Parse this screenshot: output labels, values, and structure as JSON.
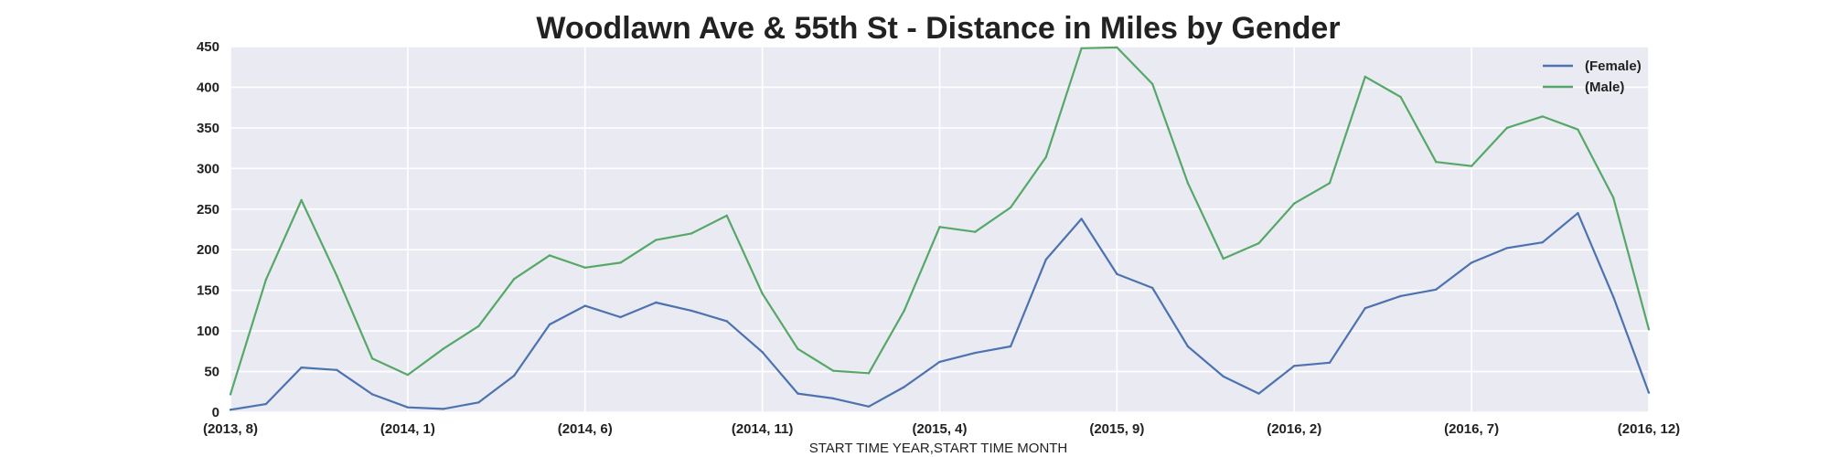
{
  "chart_data": {
    "type": "line",
    "title": "Woodlawn Ave & 55th St - Distance in Miles by Gender",
    "xlabel": "START TIME YEAR,START TIME MONTH",
    "ylabel": "",
    "ylim": [
      0,
      450
    ],
    "yticks": [
      0,
      50,
      100,
      150,
      200,
      250,
      300,
      350,
      400,
      450
    ],
    "xtick_labels": [
      "(2013, 8)",
      "(2014, 1)",
      "(2014, 6)",
      "(2014, 11)",
      "(2015, 4)",
      "(2015, 9)",
      "(2016, 2)",
      "(2016, 7)",
      "(2016, 12)"
    ],
    "xtick_every": 5,
    "grid": true,
    "legend_position": "top-right",
    "x": [
      "(2013, 8)",
      "(2013, 9)",
      "(2013, 10)",
      "(2013, 11)",
      "(2013, 12)",
      "(2014, 1)",
      "(2014, 2)",
      "(2014, 3)",
      "(2014, 4)",
      "(2014, 5)",
      "(2014, 6)",
      "(2014, 7)",
      "(2014, 8)",
      "(2014, 9)",
      "(2014, 10)",
      "(2014, 11)",
      "(2014, 12)",
      "(2015, 1)",
      "(2015, 2)",
      "(2015, 3)",
      "(2015, 4)",
      "(2015, 5)",
      "(2015, 6)",
      "(2015, 7)",
      "(2015, 8)",
      "(2015, 9)",
      "(2015, 10)",
      "(2015, 11)",
      "(2015, 12)",
      "(2016, 1)",
      "(2016, 2)",
      "(2016, 3)",
      "(2016, 4)",
      "(2016, 5)",
      "(2016, 6)",
      "(2016, 7)",
      "(2016, 8)",
      "(2016, 9)",
      "(2016, 10)",
      "(2016, 11)",
      "(2016, 12)"
    ],
    "series": [
      {
        "name": "(Female)",
        "color": "#4c72b0",
        "values": [
          3,
          10,
          55,
          52,
          22,
          6,
          4,
          12,
          45,
          108,
          131,
          117,
          135,
          125,
          112,
          74,
          23,
          17,
          7,
          31,
          62,
          73,
          81,
          188,
          238,
          170,
          153,
          81,
          44,
          23,
          57,
          61,
          128,
          143,
          151,
          184,
          202,
          209,
          245,
          142,
          24
        ]
      },
      {
        "name": "(Male)",
        "color": "#55a868",
        "values": [
          22,
          163,
          261,
          168,
          66,
          46,
          78,
          106,
          164,
          193,
          178,
          184,
          212,
          220,
          242,
          146,
          78,
          51,
          48,
          125,
          228,
          222,
          252,
          314,
          448,
          449,
          404,
          282,
          189,
          208,
          257,
          282,
          413,
          388,
          308,
          303,
          350,
          364,
          348,
          264,
          102
        ]
      }
    ]
  }
}
